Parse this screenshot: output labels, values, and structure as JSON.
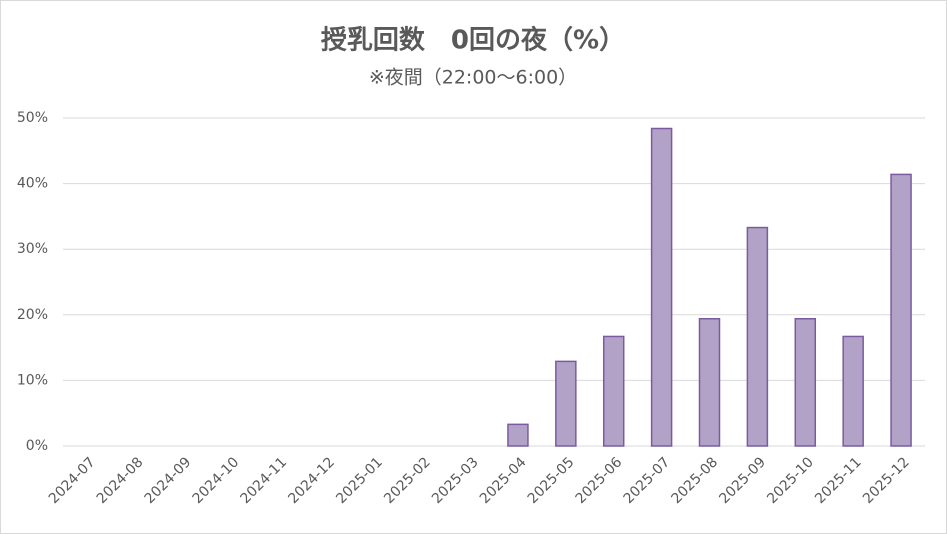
{
  "chart_data": {
    "type": "bar",
    "title": "授乳回数　0回の夜（%）",
    "subtitle": "※夜間（22:00～6:00）",
    "categories": [
      "2024-07",
      "2024-08",
      "2024-09",
      "2024-10",
      "2024-11",
      "2024-12",
      "2025-01",
      "2025-02",
      "2025-03",
      "2025-04",
      "2025-05",
      "2025-06",
      "2025-07",
      "2025-08",
      "2025-09",
      "2025-10",
      "2025-11",
      "2025-12"
    ],
    "values": [
      0,
      0,
      0,
      0,
      0,
      0,
      0,
      0,
      0,
      3.3,
      12.9,
      16.7,
      48.4,
      19.4,
      33.3,
      19.4,
      16.7,
      41.4
    ],
    "color": "#b3a2c7",
    "edge_color": "#7a5c9e",
    "ylim": [
      0,
      50
    ],
    "yticks": [
      {
        "value": 0,
        "label": "0%"
      },
      {
        "value": 10,
        "label": "10%"
      },
      {
        "value": 20,
        "label": "20%"
      },
      {
        "value": 30,
        "label": "30%"
      },
      {
        "value": 40,
        "label": "40%"
      },
      {
        "value": 50,
        "label": "50%"
      }
    ],
    "grid": true
  }
}
